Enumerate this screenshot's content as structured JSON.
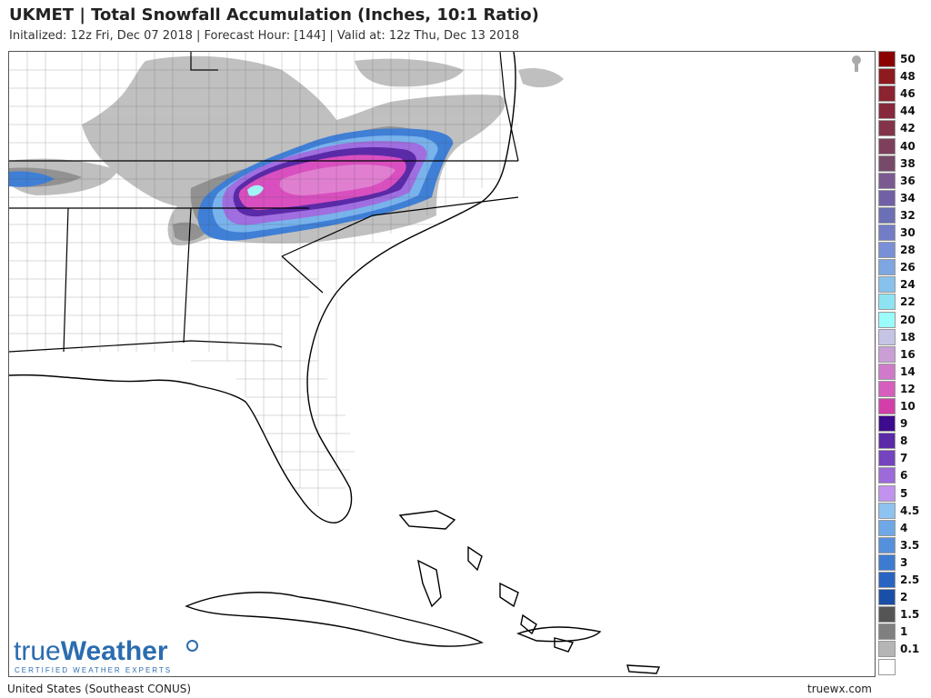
{
  "header": {
    "title": "UKMET | Total Snowfall Accumulation (Inches, 10:1 Ratio)",
    "subtitle": "Initalized: 12z Fri, Dec 07 2018 | Forecast Hour: [144] | Valid at: 12z Thu, Dec 13 2018"
  },
  "legend": [
    {
      "label": "50",
      "color": "#8b0000"
    },
    {
      "label": "48",
      "color": "#8e1a1f"
    },
    {
      "label": "46",
      "color": "#8c2330"
    },
    {
      "label": "44",
      "color": "#86293c"
    },
    {
      "label": "42",
      "color": "#83344b"
    },
    {
      "label": "40",
      "color": "#7d3f5c"
    },
    {
      "label": "38",
      "color": "#774a6a"
    },
    {
      "label": "36",
      "color": "#7a5a90"
    },
    {
      "label": "34",
      "color": "#7260a6"
    },
    {
      "label": "32",
      "color": "#6b6fb5"
    },
    {
      "label": "30",
      "color": "#727dc5"
    },
    {
      "label": "28",
      "color": "#7a90d6"
    },
    {
      "label": "26",
      "color": "#7ea6e0"
    },
    {
      "label": "24",
      "color": "#86c2ec"
    },
    {
      "label": "22",
      "color": "#8ee3f2"
    },
    {
      "label": "20",
      "color": "#9bfcfc"
    },
    {
      "label": "18",
      "color": "#c6c4e4"
    },
    {
      "label": "16",
      "color": "#c99fd6"
    },
    {
      "label": "14",
      "color": "#cf7bca"
    },
    {
      "label": "12",
      "color": "#d65ebd"
    },
    {
      "label": "10",
      "color": "#d23fa9"
    },
    {
      "label": "9",
      "color": "#3d0b8e"
    },
    {
      "label": "8",
      "color": "#5a2aa8"
    },
    {
      "label": "7",
      "color": "#7443bf"
    },
    {
      "label": "6",
      "color": "#9c6ad9"
    },
    {
      "label": "5",
      "color": "#c193ef"
    },
    {
      "label": "4.5",
      "color": "#8ec2f0"
    },
    {
      "label": "4",
      "color": "#6fa8e6"
    },
    {
      "label": "3.5",
      "color": "#5590dc"
    },
    {
      "label": "3",
      "color": "#3d7bd2"
    },
    {
      "label": "2.5",
      "color": "#2964c2"
    },
    {
      "label": "2",
      "color": "#1a4fa8"
    },
    {
      "label": "1.5",
      "color": "#555555"
    },
    {
      "label": "1",
      "color": "#808080"
    },
    {
      "label": "0.1",
      "color": "#b5b5b5"
    },
    {
      "label": "",
      "color": "#ffffff"
    }
  ],
  "footer": {
    "region": "United States (Southeast CONUS)",
    "site": "truewx.com"
  },
  "logo": {
    "word_light": "true",
    "word_bold": "Weather",
    "tagline": "CERTIFIED WEATHER EXPERTS"
  }
}
